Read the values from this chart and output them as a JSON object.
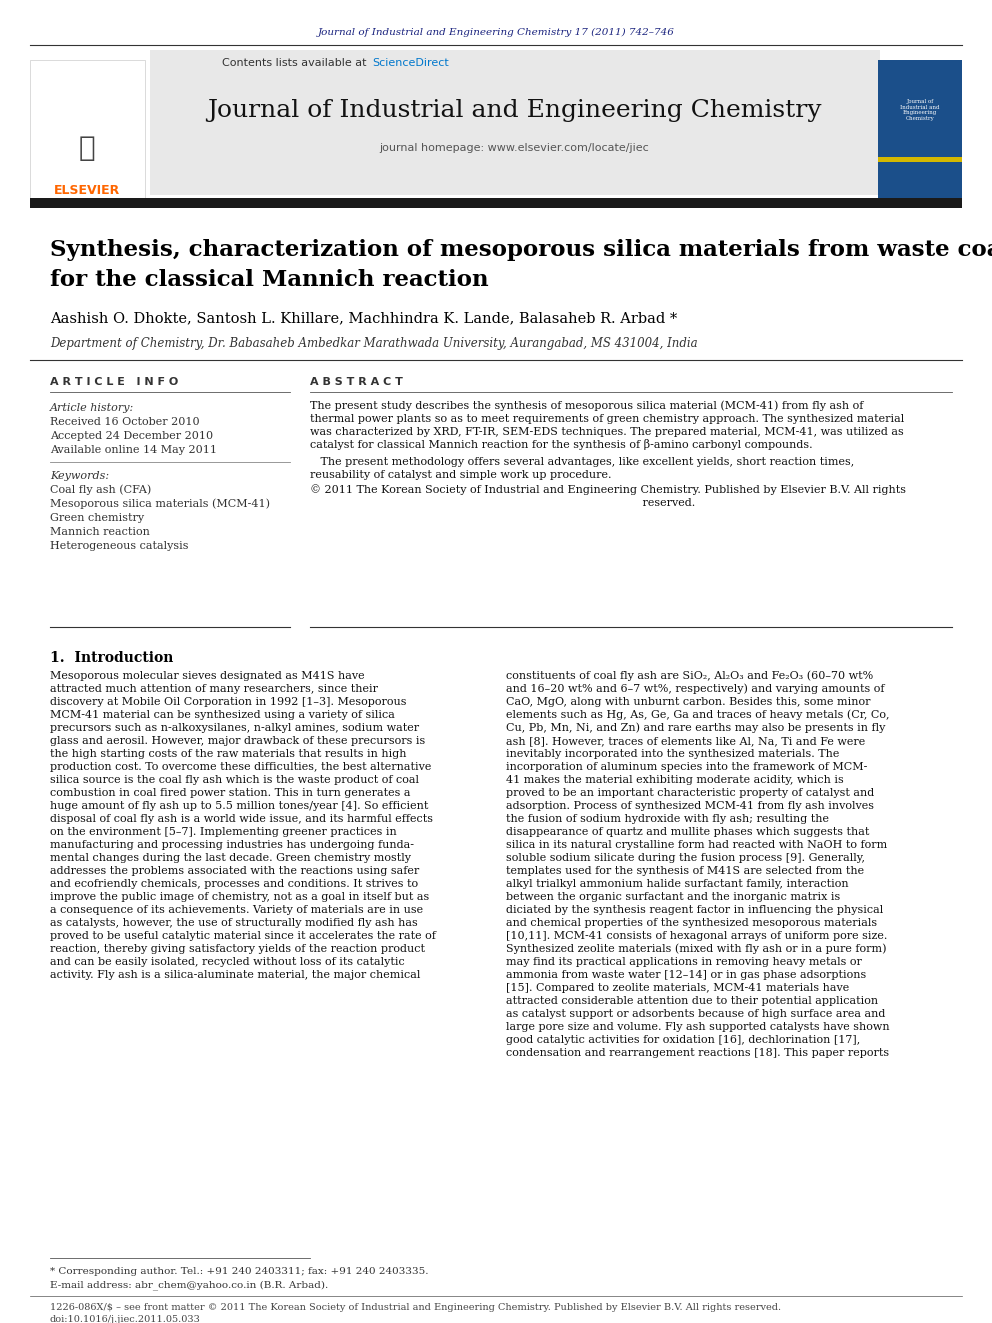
{
  "page_bg": "#ffffff",
  "header_journal_text": "Journal of Industrial and Engineering Chemistry 17 (2011) 742–746",
  "header_journal_color": "#1a237e",
  "header_contents_text": "Contents lists available at ",
  "header_sciencedirect": "ScienceDirect",
  "header_sciencedirect_color": "#0077cc",
  "header_journal_name": "Journal of Industrial and Engineering Chemistry",
  "header_homepage_text": "journal homepage: www.elsevier.com/locate/jiec",
  "header_bg_color": "#e8e8e8",
  "elsevier_text": "ELSEVIER",
  "elsevier_color": "#FF6600",
  "dark_bar_color": "#1a1a1a",
  "article_title_line1": "Synthesis, characterization of mesoporous silica materials from waste coal fly ash",
  "article_title_line2": "for the classical Mannich reaction",
  "title_font_size": 18,
  "authors": "Aashish O. Dhokte, Santosh L. Khillare, Machhindra K. Lande, Balasaheb R. Arbad *",
  "affiliation": "Department of Chemistry, Dr. Babasaheb Ambedkar Marathwada University, Aurangabad, MS 431004, India",
  "article_info_header": "A R T I C L E   I N F O",
  "abstract_header": "A B S T R A C T",
  "article_history_label": "Article history:",
  "received": "Received 16 October 2010",
  "accepted": "Accepted 24 December 2010",
  "available": "Available online 14 May 2011",
  "keywords_label": "Keywords:",
  "keywords": [
    "Coal fly ash (CFA)",
    "Mesoporous silica materials (MCM-41)",
    "Green chemistry",
    "Mannich reaction",
    "Heterogeneous catalysis"
  ],
  "abs_lines1": [
    "The present study describes the synthesis of mesoporous silica material (MCM-41) from fly ash of",
    "thermal power plants so as to meet requirements of green chemistry approach. The synthesized material",
    "was characterized by XRD, FT-IR, SEM-EDS techniques. The prepared material, MCM-41, was utilized as",
    "catalyst for classical Mannich reaction for the synthesis of β-amino carbonyl compounds."
  ],
  "abs_lines2": [
    "   The present methodology offers several advantages, like excellent yields, short reaction times,",
    "reusability of catalyst and simple work up procedure."
  ],
  "abs_lines3": [
    "© 2011 The Korean Society of Industrial and Engineering Chemistry. Published by Elsevier B.V. All rights",
    "                                                                                               reserved."
  ],
  "section1_title": "1.  Introduction",
  "intro_left_lines": [
    "Mesoporous molecular sieves designated as M41S have",
    "attracted much attention of many researchers, since their",
    "discovery at Mobile Oil Corporation in 1992 [1–3]. Mesoporous",
    "MCM-41 material can be synthesized using a variety of silica",
    "precursors such as n-alkoxysilanes, n-alkyl amines, sodium water",
    "glass and aerosil. However, major drawback of these precursors is",
    "the high starting costs of the raw materials that results in high",
    "production cost. To overcome these difficulties, the best alternative",
    "silica source is the coal fly ash which is the waste product of coal",
    "combustion in coal fired power station. This in turn generates a",
    "huge amount of fly ash up to 5.5 million tones/year [4]. So efficient",
    "disposal of coal fly ash is a world wide issue, and its harmful effects",
    "on the environment [5–7]. Implementing greener practices in",
    "manufacturing and processing industries has undergoing funda-",
    "mental changes during the last decade. Green chemistry mostly",
    "addresses the problems associated with the reactions using safer",
    "and ecofriendly chemicals, processes and conditions. It strives to",
    "improve the public image of chemistry, not as a goal in itself but as",
    "a consequence of its achievements. Variety of materials are in use",
    "as catalysts, however, the use of structurally modified fly ash has",
    "proved to be useful catalytic material since it accelerates the rate of",
    "reaction, thereby giving satisfactory yields of the reaction product",
    "and can be easily isolated, recycled without loss of its catalytic",
    "activity. Fly ash is a silica-aluminate material, the major chemical"
  ],
  "intro_right_lines": [
    "constituents of coal fly ash are SiO₂, Al₂O₃ and Fe₂O₃ (60–70 wt%",
    "and 16–20 wt% and 6–7 wt%, respectively) and varying amounts of",
    "CaO, MgO, along with unburnt carbon. Besides this, some minor",
    "elements such as Hg, As, Ge, Ga and traces of heavy metals (Cr, Co,",
    "Cu, Pb, Mn, Ni, and Zn) and rare earths may also be presents in fly",
    "ash [8]. However, traces of elements like Al, Na, Ti and Fe were",
    "inevitably incorporated into the synthesized materials. The",
    "incorporation of aluminum species into the framework of MCM-",
    "41 makes the material exhibiting moderate acidity, which is",
    "proved to be an important characteristic property of catalyst and",
    "adsorption. Process of synthesized MCM-41 from fly ash involves",
    "the fusion of sodium hydroxide with fly ash; resulting the",
    "disappearance of quartz and mullite phases which suggests that",
    "silica in its natural crystalline form had reacted with NaOH to form",
    "soluble sodium silicate during the fusion process [9]. Generally,",
    "templates used for the synthesis of M41S are selected from the",
    "alkyl trialkyl ammonium halide surfactant family, interaction",
    "between the organic surfactant and the inorganic matrix is",
    "diciated by the synthesis reagent factor in influencing the physical",
    "and chemical properties of the synthesized mesoporous materials",
    "[10,11]. MCM-41 consists of hexagonal arrays of uniform pore size.",
    "Synthesized zeolite materials (mixed with fly ash or in a pure form)",
    "may find its practical applications in removing heavy metals or",
    "ammonia from waste water [12–14] or in gas phase adsorptions",
    "[15]. Compared to zeolite materials, MCM-41 materials have",
    "attracted considerable attention due to their potential application",
    "as catalyst support or adsorbents because of high surface area and",
    "large pore size and volume. Fly ash supported catalysts have shown",
    "good catalytic activities for oxidation [16], dechlorination [17],",
    "condensation and rearrangement reactions [18]. This paper reports"
  ],
  "footer_text1": "* Corresponding author. Tel.: +91 240 2403311; fax: +91 240 2403335.",
  "footer_text2": "E-mail address: abr_chem@yahoo.co.in (B.R. Arbad).",
  "footer_issn": "1226-086X/$ – see front matter © 2011 The Korean Society of Industrial and Engineering Chemistry. Published by Elsevier B.V. All rights reserved.",
  "footer_doi": "doi:10.1016/j.jiec.2011.05.033",
  "right_panel_bg": "#1b4f8a",
  "right_panel_yellow": "#d4b800"
}
